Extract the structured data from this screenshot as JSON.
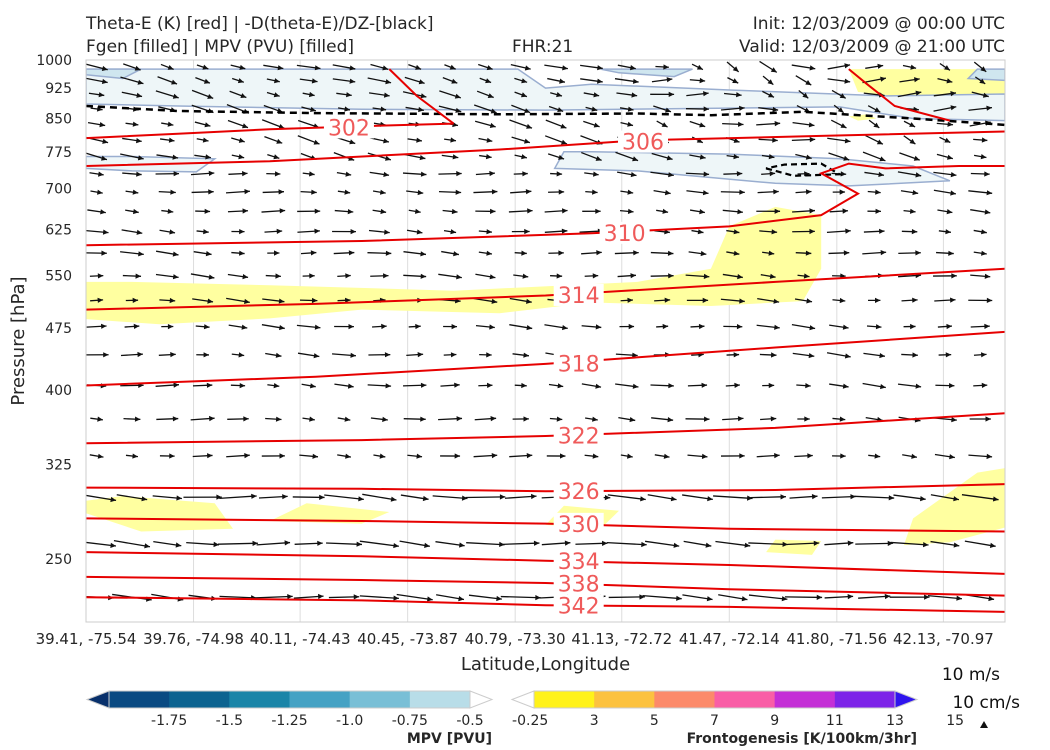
{
  "header": {
    "title_line1": "Theta-E (K) [red] | -D(theta-E)/DZ-[black]",
    "title_line2": "Fgen [filled] | MPV (PVU) [filled]",
    "fhr": "FHR:21",
    "init": "Init: 12/03/2009 @ 00:00 UTC",
    "valid": "Valid: 12/03/2009 @ 21:00 UTC"
  },
  "chart_data": {
    "type": "cross-section",
    "xlabel": "Latitude,Longitude",
    "ylabel": "Pressure [hPa]",
    "y_log_scale": true,
    "ylim": [
      1000,
      200
    ],
    "xlim": [
      0,
      1
    ],
    "y_ticks": [
      250,
      325,
      400,
      475,
      550,
      625,
      700,
      775,
      850,
      925,
      1000
    ],
    "x_ticks": [
      {
        "pos": 0.0,
        "label": "39.41, -75.54"
      },
      {
        "pos": 0.117,
        "label": "39.76, -74.98"
      },
      {
        "pos": 0.233,
        "label": "40.11, -74.43"
      },
      {
        "pos": 0.35,
        "label": "40.45, -73.87"
      },
      {
        "pos": 0.467,
        "label": "40.79, -73.30"
      },
      {
        "pos": 0.583,
        "label": "41.13, -72.72"
      },
      {
        "pos": 0.7,
        "label": "41.47, -72.14"
      },
      {
        "pos": 0.817,
        "label": "41.80, -71.56"
      },
      {
        "pos": 0.933,
        "label": "42.13, -70.97"
      }
    ],
    "theta_e_contours": [
      {
        "label": "342",
        "label_x": 0.51,
        "pts": [
          [
            0,
            225
          ],
          [
            0.3,
            223
          ],
          [
            0.5,
            220
          ],
          [
            0.7,
            219
          ],
          [
            1,
            216
          ]
        ]
      },
      {
        "label": "338",
        "label_x": 0.51,
        "pts": [
          [
            0,
            238
          ],
          [
            0.3,
            236
          ],
          [
            0.5,
            234
          ],
          [
            0.7,
            230
          ],
          [
            1,
            226
          ]
        ]
      },
      {
        "label": "334",
        "label_x": 0.51,
        "pts": [
          [
            0,
            255
          ],
          [
            0.3,
            252
          ],
          [
            0.5,
            249
          ],
          [
            0.7,
            246
          ],
          [
            1,
            240
          ]
        ]
      },
      {
        "label": "330",
        "label_x": 0.51,
        "pts": [
          [
            0,
            280
          ],
          [
            0.3,
            278
          ],
          [
            0.5,
            276
          ],
          [
            0.7,
            272
          ],
          [
            1,
            270
          ]
        ]
      },
      {
        "label": "326",
        "label_x": 0.51,
        "pts": [
          [
            0,
            305
          ],
          [
            0.3,
            304
          ],
          [
            0.5,
            302
          ],
          [
            0.75,
            303
          ],
          [
            1,
            308
          ]
        ]
      },
      {
        "label": "322",
        "label_x": 0.51,
        "pts": [
          [
            0,
            345
          ],
          [
            0.3,
            348
          ],
          [
            0.5,
            352
          ],
          [
            0.75,
            360
          ],
          [
            1,
            375
          ]
        ]
      },
      {
        "label": "318",
        "label_x": 0.51,
        "pts": [
          [
            0,
            405
          ],
          [
            0.25,
            415
          ],
          [
            0.5,
            430
          ],
          [
            0.75,
            450
          ],
          [
            1,
            470
          ]
        ]
      },
      {
        "label": "314",
        "label_x": 0.51,
        "pts": [
          [
            0,
            500
          ],
          [
            0.25,
            508
          ],
          [
            0.5,
            520
          ],
          [
            0.75,
            540
          ],
          [
            1,
            560
          ]
        ]
      },
      {
        "label": "310",
        "label_x": 0.56,
        "pts": [
          [
            0,
            598
          ],
          [
            0.3,
            605
          ],
          [
            0.55,
            618
          ],
          [
            0.7,
            630
          ],
          [
            0.8,
            650
          ],
          [
            0.84,
            690
          ],
          [
            0.8,
            730
          ],
          [
            0.83,
            750
          ],
          [
            0.87,
            740
          ],
          [
            0.95,
            745
          ],
          [
            1,
            745
          ]
        ]
      },
      {
        "label": "306",
        "label_x": 0.58,
        "pts": [
          [
            0,
            745
          ],
          [
            0.2,
            755
          ],
          [
            0.45,
            780
          ],
          [
            0.6,
            800
          ],
          [
            0.8,
            810
          ],
          [
            1,
            820
          ]
        ]
      },
      {
        "label": "302",
        "label_x": 0.26,
        "pts": [
          [
            0,
            805
          ],
          [
            0.1,
            815
          ],
          [
            0.2,
            825
          ],
          [
            0.3,
            832
          ],
          [
            0.4,
            838
          ]
        ]
      },
      {
        "label": "",
        "label_x": -1,
        "pts": [
          [
            0.4,
            838
          ],
          [
            0.36,
            905
          ],
          [
            0.33,
            975
          ]
        ]
      },
      {
        "label": "",
        "label_x": -1,
        "pts": [
          [
            0.94,
            845
          ],
          [
            0.88,
            880
          ],
          [
            0.85,
            935
          ],
          [
            0.83,
            975
          ]
        ]
      }
    ],
    "stability_contour": [
      [
        0,
        880
      ],
      [
        0.1,
        868
      ],
      [
        0.25,
        863
      ],
      [
        0.45,
        860
      ],
      [
        0.6,
        862
      ],
      [
        0.68,
        858
      ],
      [
        0.78,
        866
      ],
      [
        0.9,
        850
      ],
      [
        1,
        835
      ]
    ],
    "stability_contour_2": [
      [
        0.74,
        740
      ],
      [
        0.77,
        725
      ],
      [
        0.82,
        728
      ],
      [
        0.8,
        750
      ],
      [
        0.76,
        748
      ]
    ],
    "fgen_regions": [
      {
        "level": 3,
        "pts": [
          [
            0,
            284
          ],
          [
            0.06,
            270
          ],
          [
            0.16,
            272
          ],
          [
            0.14,
            292
          ],
          [
            0.04,
            298
          ],
          [
            0,
            294
          ]
        ]
      },
      {
        "level": 3,
        "pts": [
          [
            0.2,
            278
          ],
          [
            0.3,
            276
          ],
          [
            0.33,
            285
          ],
          [
            0.24,
            292
          ]
        ]
      },
      {
        "level": 3,
        "pts": [
          [
            0.5,
            275
          ],
          [
            0.56,
            272
          ],
          [
            0.58,
            286
          ],
          [
            0.52,
            290
          ]
        ]
      },
      {
        "level": 3,
        "pts": [
          [
            0.74,
            255
          ],
          [
            0.79,
            253
          ],
          [
            0.8,
            263
          ],
          [
            0.75,
            264
          ]
        ]
      },
      {
        "level": 3,
        "pts": [
          [
            0.89,
            260
          ],
          [
            0.94,
            262
          ],
          [
            1,
            273
          ],
          [
            1,
            322
          ],
          [
            0.97,
            318
          ],
          [
            0.9,
            280
          ]
        ]
      },
      {
        "level": 3,
        "pts": [
          [
            0,
            487
          ],
          [
            0.08,
            480
          ],
          [
            0.2,
            488
          ],
          [
            0.3,
            500
          ],
          [
            0.45,
            495
          ],
          [
            0.55,
            510
          ],
          [
            0.68,
            505
          ],
          [
            0.78,
            512
          ],
          [
            0.8,
            560
          ],
          [
            0.8,
            650
          ],
          [
            0.75,
            665
          ],
          [
            0.7,
            630
          ],
          [
            0.68,
            560
          ],
          [
            0.6,
            540
          ],
          [
            0.4,
            527
          ],
          [
            0.2,
            535
          ],
          [
            0.05,
            540
          ],
          [
            0,
            540
          ]
        ]
      },
      {
        "level": 3,
        "pts": [
          [
            0.84,
            915
          ],
          [
            0.9,
            900
          ],
          [
            0.98,
            885
          ],
          [
            1,
            885
          ],
          [
            1,
            975
          ],
          [
            0.83,
            975
          ]
        ]
      },
      {
        "level": 3,
        "pts": [
          [
            0.4,
            965
          ],
          [
            0.43,
            957
          ],
          [
            0.43,
            975
          ],
          [
            0.39,
            975
          ]
        ]
      },
      {
        "level": 3,
        "pts": [
          [
            0.84,
            845
          ],
          [
            0.86,
            850
          ],
          [
            0.85,
            860
          ],
          [
            0.83,
            855
          ]
        ]
      }
    ],
    "mpv_regions": [
      {
        "level": -0.25,
        "pts": [
          [
            0,
            740
          ],
          [
            0.05,
            735
          ],
          [
            0.12,
            733
          ],
          [
            0.14,
            760
          ],
          [
            0.05,
            765
          ],
          [
            0,
            765
          ]
        ]
      },
      {
        "level": -0.25,
        "pts": [
          [
            0.51,
            740
          ],
          [
            0.6,
            735
          ],
          [
            0.75,
            710
          ],
          [
            0.83,
            705
          ],
          [
            0.94,
            715
          ],
          [
            0.9,
            745
          ],
          [
            0.82,
            760
          ],
          [
            0.7,
            770
          ],
          [
            0.55,
            775
          ],
          [
            0.52,
            775
          ]
        ]
      },
      {
        "level": -0.25,
        "pts": [
          [
            0,
            885
          ],
          [
            0.1,
            880
          ],
          [
            0.3,
            872
          ],
          [
            0.5,
            870
          ],
          [
            0.7,
            875
          ],
          [
            0.82,
            878
          ],
          [
            0.9,
            850
          ],
          [
            1,
            845
          ],
          [
            1,
            910
          ],
          [
            0.87,
            905
          ],
          [
            0.7,
            920
          ],
          [
            0.55,
            935
          ],
          [
            0.5,
            925
          ],
          [
            0.47,
            975
          ],
          [
            0,
            975
          ]
        ]
      },
      {
        "level": -0.5,
        "pts": [
          [
            0.0,
            960
          ],
          [
            0.04,
            950
          ],
          [
            0.06,
            975
          ],
          [
            0,
            975
          ]
        ]
      },
      {
        "level": -0.5,
        "pts": [
          [
            0.58,
            965
          ],
          [
            0.64,
            955
          ],
          [
            0.66,
            975
          ],
          [
            0.56,
            975
          ]
        ]
      },
      {
        "level": -0.5,
        "pts": [
          [
            0.96,
            950
          ],
          [
            1,
            945
          ],
          [
            1,
            975
          ],
          [
            0.97,
            975
          ]
        ]
      }
    ],
    "mpv_colorbar": {
      "label": "MPV [PVU]",
      "colors": [
        "#08306b",
        "#0a4a82",
        "#0c6390",
        "#1a85a8",
        "#45a2c4",
        "#79bfd6",
        "#b8dde8",
        "#ffffff"
      ],
      "tick_labels": [
        "-1.75",
        "-1.5",
        "-1.25",
        "-1.0",
        "-0.75",
        "-0.5",
        "-0.25"
      ]
    },
    "fgen_colorbar": {
      "label": "Frontogenesis [K/100km/3hr]",
      "colors": [
        "#ffffff",
        "#fff21a",
        "#fcc23f",
        "#fc8a6a",
        "#f95ea6",
        "#c42fd6",
        "#7d24e8",
        "#2f14ee"
      ],
      "tick_labels": [
        "3",
        "5",
        "7",
        "9",
        "11",
        "13",
        "15"
      ]
    },
    "vector_key_labels": [
      "10 m/s",
      "10 cm/s"
    ],
    "colors": {
      "theta_e": "#e60000",
      "stability": "#000000",
      "fgen_light": "#ffffa0",
      "mpv_light": "#eef6f8",
      "mpv_edge": "#9aaed0"
    }
  }
}
